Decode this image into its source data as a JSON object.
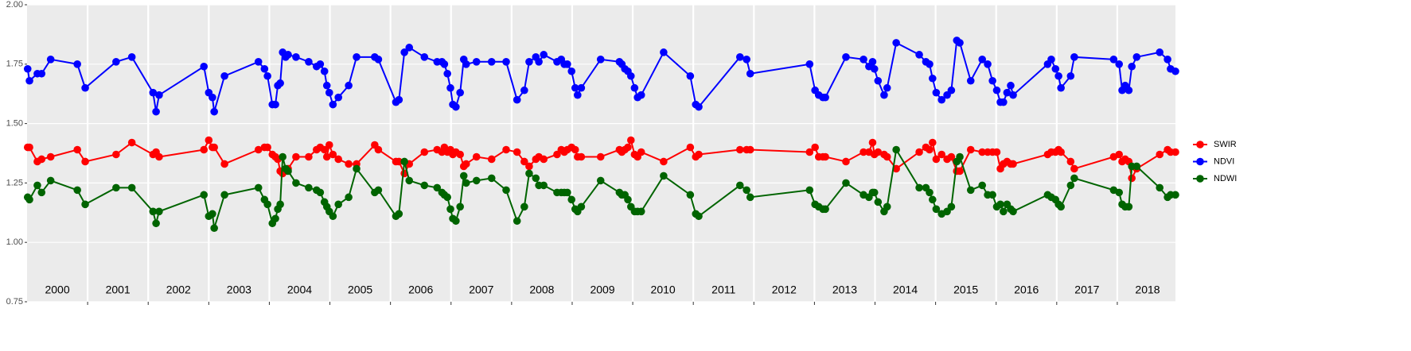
{
  "chart_data": {
    "type": "line",
    "x": [
      2000.01,
      2000.04,
      2000.17,
      2000.24,
      2000.39,
      2000.83,
      2000.96,
      2001.47,
      2001.73,
      2002.08,
      2002.13,
      2002.18,
      2002.92,
      2003.0,
      2003.06,
      2003.09,
      2003.26,
      2003.82,
      2003.92,
      2003.97,
      2004.05,
      2004.1,
      2004.14,
      2004.18,
      2004.22,
      2004.27,
      2004.31,
      2004.44,
      2004.65,
      2004.78,
      2004.84,
      2004.91,
      2004.95,
      2004.99,
      2005.05,
      2005.14,
      2005.31,
      2005.44,
      2005.74,
      2005.8,
      2006.09,
      2006.14,
      2006.23,
      2006.31,
      2006.56,
      2006.77,
      2006.85,
      2006.89,
      2006.94,
      2006.99,
      2007.03,
      2007.08,
      2007.15,
      2007.21,
      2007.25,
      2007.42,
      2007.67,
      2007.91,
      2008.09,
      2008.21,
      2008.29,
      2008.4,
      2008.45,
      2008.53,
      2008.75,
      2008.82,
      2008.87,
      2008.92,
      2008.99,
      2009.05,
      2009.09,
      2009.15,
      2009.47,
      2009.78,
      2009.82,
      2009.87,
      2009.92,
      2009.97,
      2010.03,
      2010.08,
      2010.14,
      2010.51,
      2010.95,
      2011.04,
      2011.09,
      2011.77,
      2011.88,
      2011.94,
      2012.92,
      2013.01,
      2013.07,
      2013.14,
      2013.18,
      2013.52,
      2013.81,
      2013.9,
      2013.96,
      2013.99,
      2014.05,
      2014.15,
      2014.2,
      2014.35,
      2014.73,
      2014.84,
      2014.9,
      2014.95,
      2015.01,
      2015.1,
      2015.19,
      2015.26,
      2015.35,
      2015.4,
      2015.58,
      2015.77,
      2015.86,
      2015.94,
      2016.01,
      2016.07,
      2016.12,
      2016.18,
      2016.24,
      2016.28,
      2016.85,
      2016.91,
      2016.98,
      2017.03,
      2017.07,
      2017.23,
      2017.29,
      2017.94,
      2018.03,
      2018.08,
      2018.13,
      2018.19,
      2018.24,
      2018.32,
      2018.7,
      2018.83,
      2018.88,
      2018.96
    ],
    "series": [
      {
        "name": "SWIR",
        "color": "#ff0000",
        "values": [
          1.4,
          1.4,
          1.34,
          1.35,
          1.36,
          1.39,
          1.34,
          1.37,
          1.42,
          1.37,
          1.38,
          1.36,
          1.39,
          1.43,
          1.4,
          1.4,
          1.33,
          1.39,
          1.4,
          1.4,
          1.37,
          1.36,
          1.35,
          1.3,
          1.29,
          1.3,
          1.31,
          1.36,
          1.36,
          1.39,
          1.4,
          1.39,
          1.36,
          1.41,
          1.37,
          1.35,
          1.33,
          1.33,
          1.41,
          1.39,
          1.34,
          1.34,
          1.29,
          1.33,
          1.38,
          1.39,
          1.38,
          1.4,
          1.38,
          1.39,
          1.37,
          1.38,
          1.37,
          1.32,
          1.33,
          1.36,
          1.35,
          1.39,
          1.38,
          1.34,
          1.32,
          1.35,
          1.36,
          1.35,
          1.37,
          1.39,
          1.38,
          1.39,
          1.4,
          1.39,
          1.36,
          1.36,
          1.36,
          1.39,
          1.38,
          1.39,
          1.4,
          1.43,
          1.37,
          1.36,
          1.38,
          1.34,
          1.4,
          1.36,
          1.37,
          1.39,
          1.39,
          1.39,
          1.38,
          1.4,
          1.36,
          1.36,
          1.36,
          1.34,
          1.38,
          1.38,
          1.42,
          1.37,
          1.38,
          1.37,
          1.36,
          1.31,
          1.38,
          1.4,
          1.39,
          1.42,
          1.35,
          1.37,
          1.35,
          1.36,
          1.3,
          1.3,
          1.39,
          1.38,
          1.38,
          1.38,
          1.38,
          1.31,
          1.33,
          1.34,
          1.33,
          1.33,
          1.37,
          1.38,
          1.38,
          1.39,
          1.38,
          1.34,
          1.31,
          1.36,
          1.37,
          1.34,
          1.35,
          1.34,
          1.27,
          1.31,
          1.37,
          1.39,
          1.38,
          1.38
        ]
      },
      {
        "name": "NDVI",
        "color": "#0000ff",
        "values": [
          1.73,
          1.68,
          1.71,
          1.71,
          1.77,
          1.75,
          1.65,
          1.76,
          1.78,
          1.63,
          1.55,
          1.62,
          1.74,
          1.63,
          1.61,
          1.55,
          1.7,
          1.76,
          1.73,
          1.7,
          1.58,
          1.58,
          1.66,
          1.67,
          1.8,
          1.78,
          1.79,
          1.78,
          1.76,
          1.74,
          1.75,
          1.72,
          1.66,
          1.63,
          1.58,
          1.61,
          1.66,
          1.78,
          1.78,
          1.77,
          1.59,
          1.6,
          1.8,
          1.82,
          1.78,
          1.76,
          1.76,
          1.75,
          1.71,
          1.65,
          1.58,
          1.57,
          1.63,
          1.77,
          1.75,
          1.76,
          1.76,
          1.76,
          1.6,
          1.64,
          1.76,
          1.78,
          1.76,
          1.79,
          1.76,
          1.77,
          1.75,
          1.75,
          1.72,
          1.65,
          1.62,
          1.65,
          1.77,
          1.76,
          1.75,
          1.73,
          1.72,
          1.7,
          1.65,
          1.61,
          1.62,
          1.8,
          1.7,
          1.58,
          1.57,
          1.78,
          1.77,
          1.71,
          1.75,
          1.64,
          1.62,
          1.61,
          1.61,
          1.78,
          1.77,
          1.74,
          1.76,
          1.73,
          1.68,
          1.62,
          1.65,
          1.84,
          1.79,
          1.76,
          1.75,
          1.69,
          1.63,
          1.6,
          1.62,
          1.64,
          1.85,
          1.84,
          1.68,
          1.77,
          1.75,
          1.68,
          1.64,
          1.59,
          1.59,
          1.63,
          1.66,
          1.62,
          1.75,
          1.77,
          1.73,
          1.7,
          1.65,
          1.7,
          1.78,
          1.77,
          1.75,
          1.64,
          1.66,
          1.64,
          1.74,
          1.78,
          1.8,
          1.77,
          1.73,
          1.72
        ]
      },
      {
        "name": "NDWI",
        "color": "#006400",
        "values": [
          1.19,
          1.18,
          1.24,
          1.21,
          1.26,
          1.22,
          1.16,
          1.23,
          1.23,
          1.13,
          1.08,
          1.13,
          1.2,
          1.11,
          1.12,
          1.06,
          1.2,
          1.23,
          1.18,
          1.16,
          1.08,
          1.1,
          1.14,
          1.16,
          1.36,
          1.31,
          1.3,
          1.25,
          1.23,
          1.22,
          1.21,
          1.17,
          1.15,
          1.13,
          1.11,
          1.16,
          1.19,
          1.31,
          1.21,
          1.22,
          1.11,
          1.12,
          1.34,
          1.26,
          1.24,
          1.23,
          1.21,
          1.2,
          1.19,
          1.14,
          1.1,
          1.09,
          1.15,
          1.28,
          1.25,
          1.26,
          1.27,
          1.22,
          1.09,
          1.15,
          1.29,
          1.27,
          1.24,
          1.24,
          1.21,
          1.21,
          1.21,
          1.21,
          1.18,
          1.14,
          1.13,
          1.15,
          1.26,
          1.21,
          1.2,
          1.2,
          1.18,
          1.15,
          1.13,
          1.13,
          1.13,
          1.28,
          1.2,
          1.12,
          1.11,
          1.24,
          1.22,
          1.19,
          1.22,
          1.16,
          1.15,
          1.14,
          1.14,
          1.25,
          1.2,
          1.19,
          1.21,
          1.21,
          1.17,
          1.13,
          1.15,
          1.39,
          1.23,
          1.23,
          1.21,
          1.18,
          1.14,
          1.12,
          1.13,
          1.15,
          1.34,
          1.36,
          1.22,
          1.24,
          1.2,
          1.2,
          1.15,
          1.16,
          1.13,
          1.16,
          1.14,
          1.13,
          1.2,
          1.19,
          1.18,
          1.16,
          1.15,
          1.24,
          1.27,
          1.22,
          1.21,
          1.16,
          1.15,
          1.15,
          1.32,
          1.32,
          1.23,
          1.19,
          1.2,
          1.2
        ]
      }
    ],
    "xlim": [
      2000,
      2018.96
    ],
    "xticks": [
      2001,
      2002,
      2003,
      2004,
      2005,
      2006,
      2007,
      2008,
      2009,
      2010,
      2011,
      2012,
      2013,
      2014,
      2015,
      2016,
      2017,
      2018
    ],
    "annotations": [
      "2000",
      "2001",
      "2002",
      "2003",
      "2004",
      "2005",
      "2006",
      "2007",
      "2008",
      "2009",
      "2010",
      "2011",
      "2012",
      "2013",
      "2014",
      "2015",
      "2016",
      "2017",
      "2018"
    ],
    "ylim": [
      0.75,
      2.0
    ],
    "yticks": [
      0.75,
      {
        "value": 1.0,
        "label": "1.00"
      },
      1.25,
      {
        "value": 1.5,
        "label": "1.50"
      },
      1.75,
      {
        "value": 2.0,
        "label": "2.00"
      }
    ],
    "grid": true,
    "legend": "right"
  }
}
